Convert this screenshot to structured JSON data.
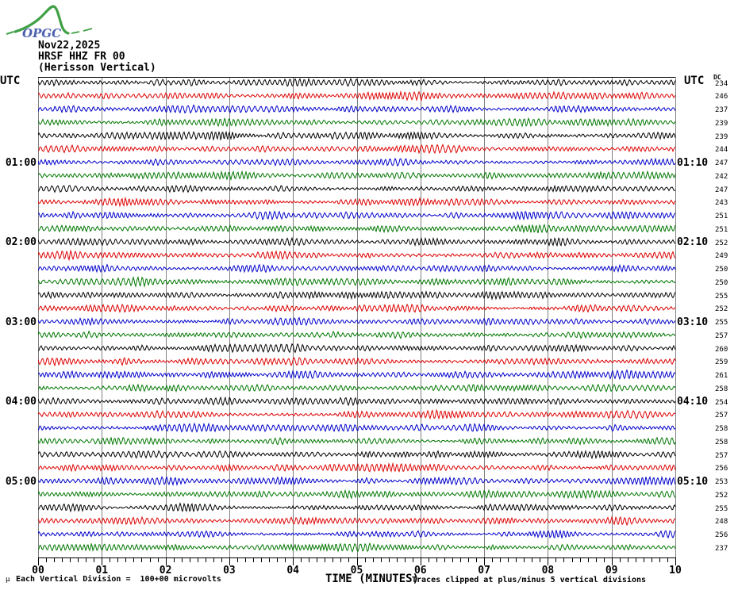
{
  "logo": {
    "text": "OPGC",
    "accent_green": "#3fa045",
    "text_blue": "#4a5fae"
  },
  "header": {
    "date": "Nov22,2025",
    "station": "HRSF HHZ FR 00",
    "description": "(Herisson Vertical)"
  },
  "axes": {
    "left_axis_label": "UTC",
    "right_axis_label": "UTC",
    "dc_column_label": "DC",
    "x_title": "TIME (MINUTES)",
    "x_ticks": [
      "00",
      "01",
      "02",
      "03",
      "04",
      "05",
      "06",
      "07",
      "08",
      "09",
      "10"
    ],
    "left_hour_labels": [
      {
        "row": 6,
        "label": "01:00"
      },
      {
        "row": 12,
        "label": "02:00"
      },
      {
        "row": 18,
        "label": "03:00"
      },
      {
        "row": 24,
        "label": "04:00"
      },
      {
        "row": 30,
        "label": "05:00"
      }
    ],
    "right_hour_labels": [
      {
        "row": 6,
        "label": "01:10"
      },
      {
        "row": 12,
        "label": "02:10"
      },
      {
        "row": 18,
        "label": "03:10"
      },
      {
        "row": 24,
        "label": "04:10"
      },
      {
        "row": 30,
        "label": "05:10"
      }
    ]
  },
  "footer": {
    "mu_symbol": "µ",
    "scale_note": "Each Vertical Division =  100+00 microvolts",
    "clip_note": "Traces clipped at plus/minus 5 vertical divisions"
  },
  "colors": {
    "trace_cycle": [
      "#000000",
      "#dd0000",
      "#0000cc",
      "#007700"
    ],
    "grid": "#808080",
    "axis": "#000000"
  },
  "chart_data": {
    "type": "line",
    "subtype": "helicorder-seismogram",
    "title": "HRSF HHZ FR 00 (Herisson Vertical) Nov22,2025",
    "xlabel": "TIME (MINUTES)",
    "x_range_minutes": [
      0,
      10
    ],
    "x_major_ticks": [
      "00",
      "01",
      "02",
      "03",
      "04",
      "05",
      "06",
      "07",
      "08",
      "09",
      "10"
    ],
    "x_minor_divisions_per_major": 8,
    "minutes_per_row": 10,
    "grid": "vertical gridlines at each minute",
    "amplitude_scale": "Each Vertical Division = 100+00 microvolts",
    "clipping": "Traces clipped at plus/minus 5 vertical divisions",
    "signal_description": "continuous background seismic noise on every trace, no large discrete events",
    "rows": [
      {
        "start_utc": "00:00",
        "color": "black",
        "dc": 234
      },
      {
        "start_utc": "00:10",
        "color": "red",
        "dc": 246
      },
      {
        "start_utc": "00:20",
        "color": "blue",
        "dc": 237
      },
      {
        "start_utc": "00:30",
        "color": "green",
        "dc": 239
      },
      {
        "start_utc": "00:40",
        "color": "black",
        "dc": 239
      },
      {
        "start_utc": "00:50",
        "color": "red",
        "dc": 244
      },
      {
        "start_utc": "01:00",
        "color": "blue",
        "dc": 247
      },
      {
        "start_utc": "01:10",
        "color": "green",
        "dc": 242
      },
      {
        "start_utc": "01:20",
        "color": "black",
        "dc": 247
      },
      {
        "start_utc": "01:30",
        "color": "red",
        "dc": 243
      },
      {
        "start_utc": "01:40",
        "color": "blue",
        "dc": 251
      },
      {
        "start_utc": "01:50",
        "color": "green",
        "dc": 251
      },
      {
        "start_utc": "02:00",
        "color": "black",
        "dc": 252
      },
      {
        "start_utc": "02:10",
        "color": "red",
        "dc": 249
      },
      {
        "start_utc": "02:20",
        "color": "blue",
        "dc": 250
      },
      {
        "start_utc": "02:30",
        "color": "green",
        "dc": 250
      },
      {
        "start_utc": "02:40",
        "color": "black",
        "dc": 255
      },
      {
        "start_utc": "02:50",
        "color": "red",
        "dc": 252
      },
      {
        "start_utc": "03:00",
        "color": "blue",
        "dc": 255
      },
      {
        "start_utc": "03:10",
        "color": "green",
        "dc": 257
      },
      {
        "start_utc": "03:20",
        "color": "black",
        "dc": 260
      },
      {
        "start_utc": "03:30",
        "color": "red",
        "dc": 259
      },
      {
        "start_utc": "03:40",
        "color": "blue",
        "dc": 261
      },
      {
        "start_utc": "03:50",
        "color": "green",
        "dc": 258
      },
      {
        "start_utc": "04:00",
        "color": "black",
        "dc": 254
      },
      {
        "start_utc": "04:10",
        "color": "red",
        "dc": 257
      },
      {
        "start_utc": "04:20",
        "color": "blue",
        "dc": 258
      },
      {
        "start_utc": "04:30",
        "color": "green",
        "dc": 258
      },
      {
        "start_utc": "04:40",
        "color": "black",
        "dc": 257
      },
      {
        "start_utc": "04:50",
        "color": "red",
        "dc": 256
      },
      {
        "start_utc": "05:00",
        "color": "blue",
        "dc": 253
      },
      {
        "start_utc": "05:10",
        "color": "green",
        "dc": 252
      },
      {
        "start_utc": "05:20",
        "color": "black",
        "dc": 255
      },
      {
        "start_utc": "05:30",
        "color": "red",
        "dc": 248
      },
      {
        "start_utc": "05:40",
        "color": "blue",
        "dc": 256
      },
      {
        "start_utc": "05:50",
        "color": "green",
        "dc": 237
      }
    ]
  }
}
